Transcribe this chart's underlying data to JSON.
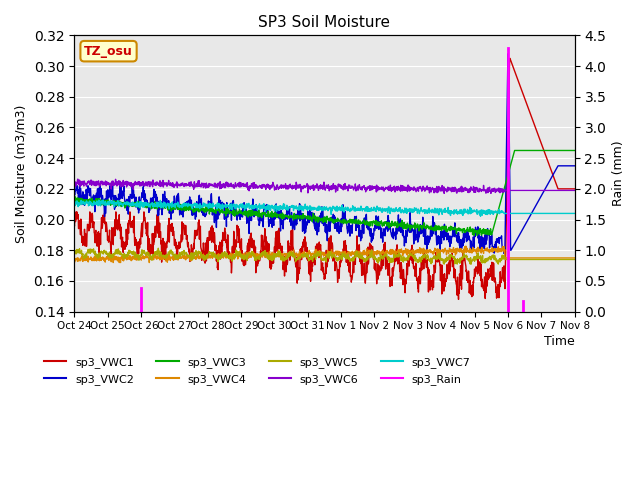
{
  "title": "SP3 Soil Moisture",
  "xlabel": "Time",
  "ylabel_left": "Soil Moisture (m3/m3)",
  "ylabel_right": "Rain (mm)",
  "ylim_left": [
    0.14,
    0.32
  ],
  "ylim_right": [
    0.0,
    4.5
  ],
  "background_color": "#e8e8e8",
  "tz_label": "TZ_osu",
  "x_tick_labels": [
    "Oct 24",
    "Oct 25",
    "Oct 26",
    "Oct 27",
    "Oct 28",
    "Oct 29",
    "Oct 30",
    "Oct 31",
    "Nov 1",
    "Nov 2",
    "Nov 3",
    "Nov 4",
    "Nov 5",
    "Nov 6",
    "Nov 7",
    "Nov 8"
  ],
  "yticks_left": [
    0.14,
    0.16,
    0.18,
    0.2,
    0.22,
    0.24,
    0.26,
    0.28,
    0.3,
    0.32
  ],
  "yticks_right": [
    0.0,
    0.5,
    1.0,
    1.5,
    2.0,
    2.5,
    3.0,
    3.5,
    4.0,
    4.5
  ],
  "colors": {
    "vwc1": "#cc0000",
    "vwc2": "#0000cc",
    "vwc3": "#00aa00",
    "vwc4": "#dd8800",
    "vwc5": "#aaaa00",
    "vwc6": "#8800cc",
    "vwc7": "#00cccc",
    "rain": "#ff00ff"
  },
  "legend_labels": [
    "sp3_VWC1",
    "sp3_VWC2",
    "sp3_VWC3",
    "sp3_VWC4",
    "sp3_VWC5",
    "sp3_VWC6",
    "sp3_VWC7",
    "sp3_Rain"
  ]
}
